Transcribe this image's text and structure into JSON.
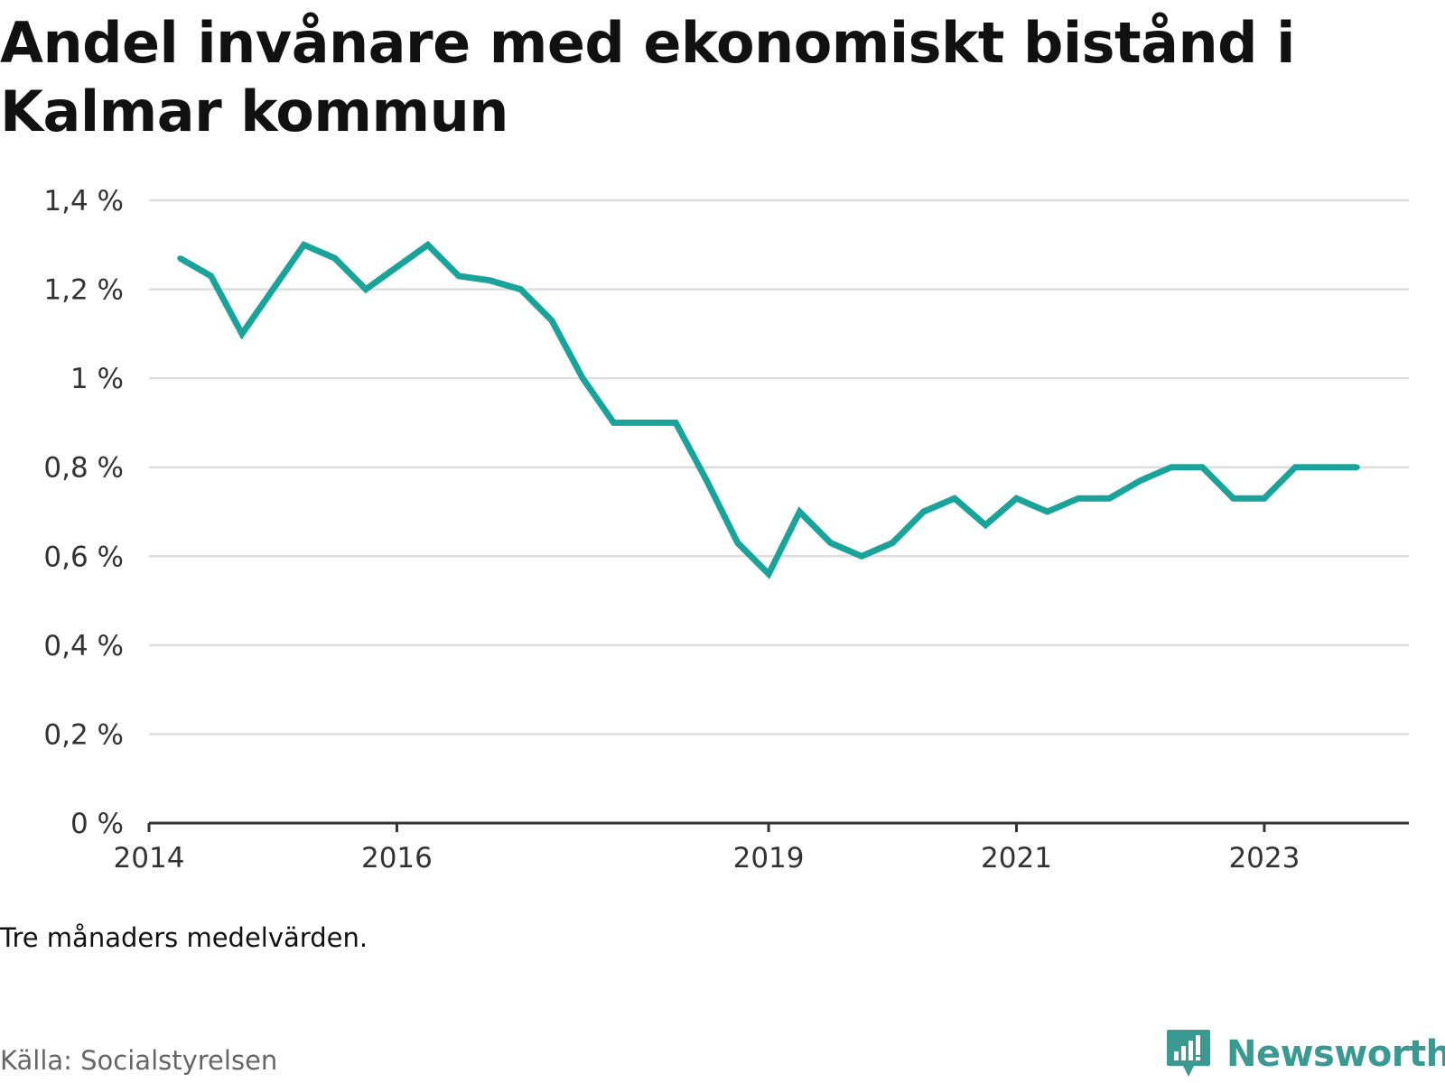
{
  "title": "Andel invånare med ekonomiskt bistånd i Kalmar kommun",
  "note": "Tre månaders medelvärden.",
  "source": "Källa: Socialstyrelsen",
  "brand": {
    "name": "Newsworthy",
    "icon": "newsworthy-logo-icon",
    "color": "#3a9a92"
  },
  "chart_data": {
    "type": "line",
    "title": "Andel invånare med ekonomiskt bistånd i Kalmar kommun",
    "xlabel": "",
    "ylabel": "",
    "ylim": [
      0,
      1.4
    ],
    "xlim": [
      "2014-01",
      "2024-03"
    ],
    "grid": true,
    "line_color": "#1aa39a",
    "y_ticks": [
      {
        "value": 0,
        "label": "0 %"
      },
      {
        "value": 0.2,
        "label": "0,2 %"
      },
      {
        "value": 0.4,
        "label": "0,4 %"
      },
      {
        "value": 0.6,
        "label": "0,6 %"
      },
      {
        "value": 0.8,
        "label": "0,8 %"
      },
      {
        "value": 1.0,
        "label": "1 %"
      },
      {
        "value": 1.2,
        "label": "1,2 %"
      },
      {
        "value": 1.4,
        "label": "1,4 %"
      }
    ],
    "x_ticks": [
      {
        "value": "2014-01",
        "label": "2014"
      },
      {
        "value": "2016-01",
        "label": "2016"
      },
      {
        "value": "2019-01",
        "label": "2019"
      },
      {
        "value": "2021-01",
        "label": "2021"
      },
      {
        "value": "2023-01",
        "label": "2023"
      }
    ],
    "series": [
      {
        "x": [
          "2014-04",
          "2014-07",
          "2014-10",
          "2015-01",
          "2015-04",
          "2015-07",
          "2015-10",
          "2016-01",
          "2016-04",
          "2016-07",
          "2016-10",
          "2017-01",
          "2017-04",
          "2017-07",
          "2017-10",
          "2018-01",
          "2018-04",
          "2018-07",
          "2018-10",
          "2019-01",
          "2019-04",
          "2019-07",
          "2019-10",
          "2020-01",
          "2020-04",
          "2020-07",
          "2020-10",
          "2021-01",
          "2021-04",
          "2021-07",
          "2021-10",
          "2022-01",
          "2022-04",
          "2022-07",
          "2022-10",
          "2023-01",
          "2023-04",
          "2023-07",
          "2023-10"
        ],
        "values": [
          1.27,
          1.23,
          1.1,
          1.2,
          1.3,
          1.27,
          1.2,
          1.25,
          1.3,
          1.23,
          1.22,
          1.2,
          1.13,
          1.0,
          0.9,
          0.9,
          0.9,
          0.77,
          0.63,
          0.56,
          0.7,
          0.63,
          0.6,
          0.63,
          0.7,
          0.73,
          0.67,
          0.73,
          0.7,
          0.73,
          0.73,
          0.77,
          0.8,
          0.8,
          0.73,
          0.73,
          0.8,
          0.8,
          0.8
        ]
      }
    ]
  }
}
